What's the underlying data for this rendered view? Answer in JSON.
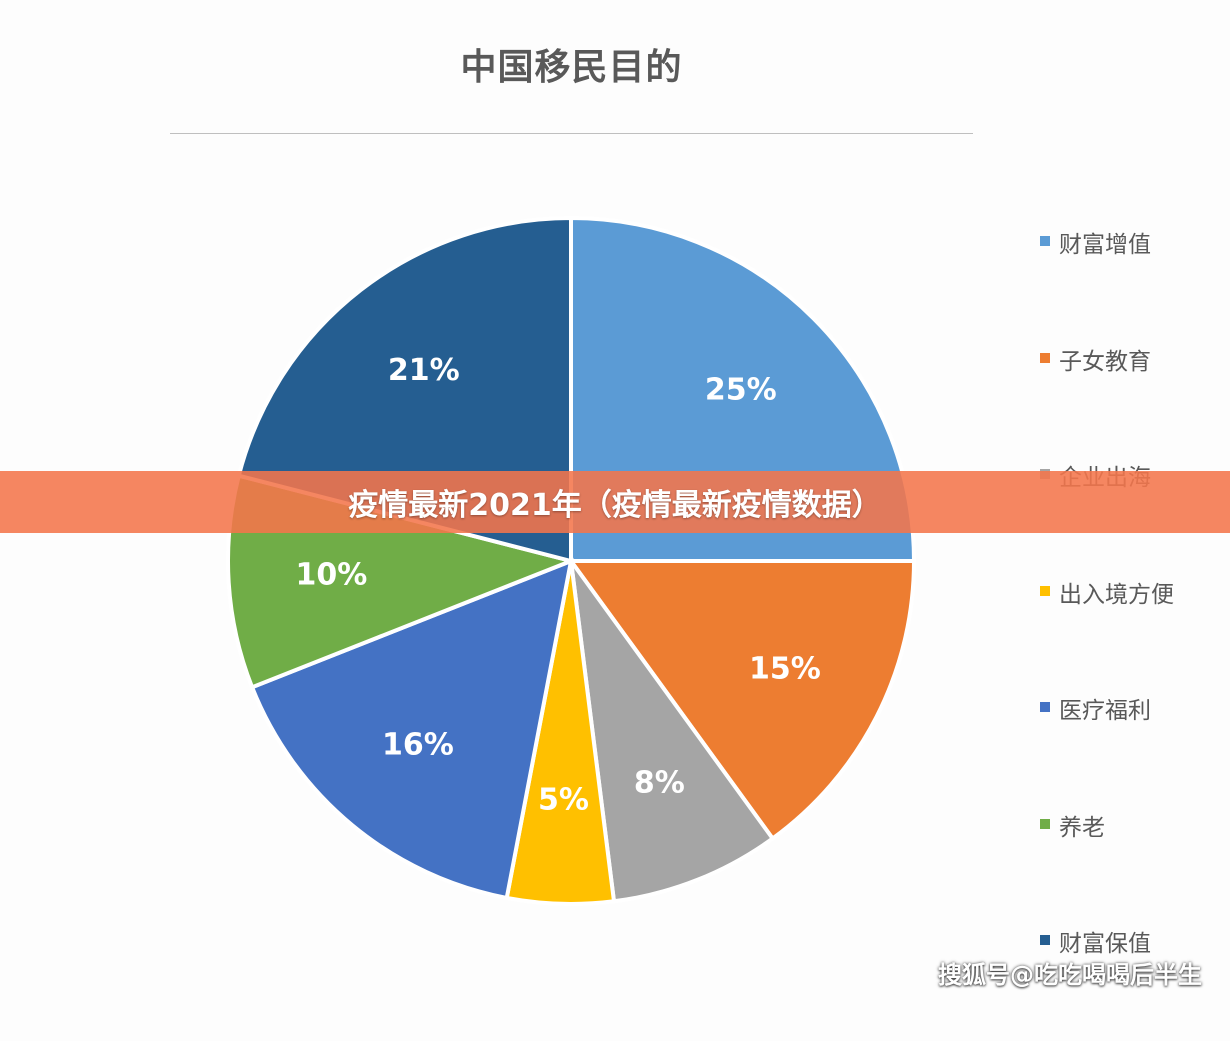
{
  "chart_data": {
    "type": "pie",
    "title": "中国移民目的",
    "categories": [
      "财富增值",
      "子女教育",
      "企业出海",
      "出入境方便",
      "医疗福利",
      "养老",
      "财富保值"
    ],
    "values": [
      25,
      15,
      8,
      5,
      16,
      10,
      21
    ],
    "value_labels": [
      "25%",
      "15%",
      "8%",
      "5%",
      "16%",
      "10%",
      "21%"
    ],
    "colors": [
      "#5b9bd5",
      "#ed7d31",
      "#a5a5a5",
      "#ffc000",
      "#4472c4",
      "#70ad47",
      "#255e91"
    ],
    "legend_position": "right",
    "start_angle": "12 o'clock",
    "direction": "clockwise"
  },
  "banner": {
    "text": "疫情最新2021年（疫情最新疫情数据）",
    "color": "#f4754b"
  },
  "watermark": {
    "text": "搜狐号@吃吃喝喝后半生"
  }
}
